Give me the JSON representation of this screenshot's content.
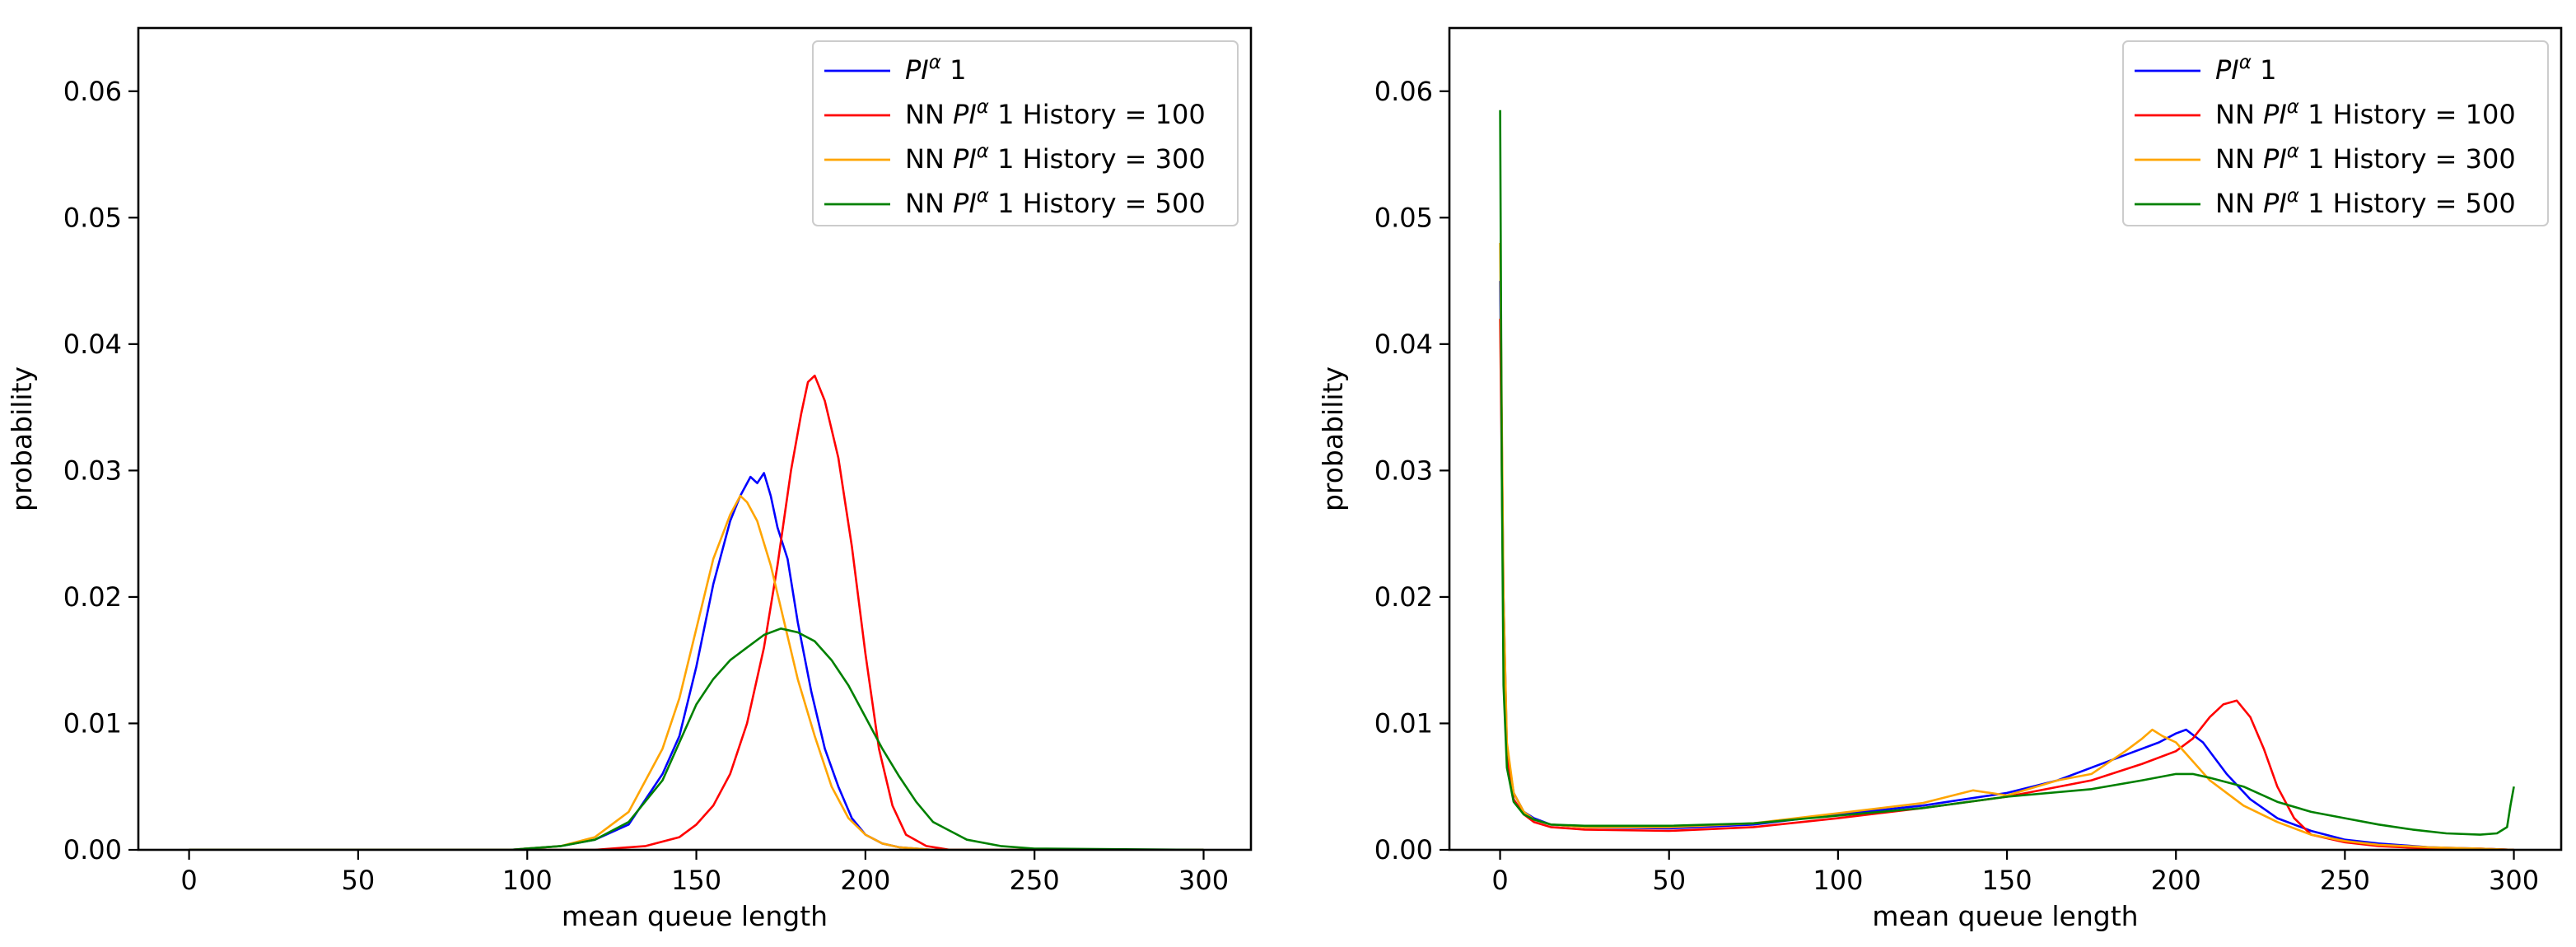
{
  "chart_data": [
    {
      "type": "line",
      "panel": "left",
      "xlabel": "mean queue length",
      "ylabel": "probability",
      "xlim": [
        -15,
        314
      ],
      "ylim": [
        0,
        0.065
      ],
      "xticks": [
        0,
        50,
        100,
        150,
        200,
        250,
        300
      ],
      "xtick_labels": [
        "0",
        "50",
        "100",
        "150",
        "200",
        "250",
        "300"
      ],
      "yticks": [
        0,
        0.01,
        0.02,
        0.03,
        0.04,
        0.05,
        0.06
      ],
      "ytick_labels": [
        "0.00",
        "0.01",
        "0.02",
        "0.03",
        "0.04",
        "0.05",
        "0.06"
      ],
      "legend_position": "top-right",
      "series": [
        {
          "name": "PI^α 1",
          "label_main": "PI",
          "label_sup": "α",
          "label_rest": " 1",
          "color": "#0000ff",
          "x": [
            0,
            95,
            110,
            120,
            130,
            140,
            145,
            150,
            155,
            160,
            163,
            166,
            168,
            170,
            172,
            174,
            177,
            180,
            184,
            188,
            192,
            196,
            200,
            205,
            210,
            220,
            300
          ],
          "y": [
            0,
            0,
            0.0003,
            0.0008,
            0.002,
            0.006,
            0.009,
            0.0145,
            0.021,
            0.026,
            0.028,
            0.0295,
            0.029,
            0.0298,
            0.028,
            0.0255,
            0.023,
            0.018,
            0.0125,
            0.008,
            0.005,
            0.0025,
            0.0012,
            0.0005,
            0.0002,
            0,
            0
          ]
        },
        {
          "name": "NN PI^α 1 History = 100",
          "label_pre": "NN ",
          "label_main": "PI",
          "label_sup": "α",
          "label_rest": " 1 History = 100",
          "color": "#ff0000",
          "x": [
            0,
            120,
            135,
            145,
            150,
            155,
            160,
            165,
            170,
            174,
            178,
            181,
            183,
            185,
            188,
            192,
            196,
            200,
            204,
            208,
            212,
            218,
            225,
            300
          ],
          "y": [
            0,
            0,
            0.0003,
            0.001,
            0.002,
            0.0035,
            0.006,
            0.01,
            0.016,
            0.0225,
            0.03,
            0.0345,
            0.037,
            0.0375,
            0.0355,
            0.031,
            0.024,
            0.0155,
            0.008,
            0.0035,
            0.0012,
            0.0003,
            0,
            0
          ]
        },
        {
          "name": "NN PI^α 1 History = 300",
          "label_pre": "NN ",
          "label_main": "PI",
          "label_sup": "α",
          "label_rest": " 1 History = 300",
          "color": "#ffa500",
          "x": [
            0,
            95,
            110,
            120,
            130,
            140,
            145,
            150,
            155,
            160,
            163,
            165,
            168,
            172,
            176,
            180,
            185,
            190,
            195,
            200,
            205,
            210,
            220,
            300
          ],
          "y": [
            0,
            0,
            0.0003,
            0.001,
            0.003,
            0.008,
            0.012,
            0.0175,
            0.023,
            0.0265,
            0.028,
            0.0275,
            0.026,
            0.0225,
            0.018,
            0.0135,
            0.009,
            0.005,
            0.0025,
            0.0012,
            0.0005,
            0.0002,
            0,
            0
          ]
        },
        {
          "name": "NN PI^α 1 History = 500",
          "label_pre": "NN ",
          "label_main": "PI",
          "label_sup": "α",
          "label_rest": " 1 History = 500",
          "color": "#008000",
          "x": [
            0,
            95,
            110,
            120,
            130,
            140,
            145,
            150,
            155,
            160,
            165,
            170,
            175,
            180,
            185,
            190,
            195,
            200,
            205,
            210,
            215,
            220,
            230,
            240,
            250,
            300
          ],
          "y": [
            0,
            0,
            0.0003,
            0.0008,
            0.0022,
            0.0055,
            0.0085,
            0.0115,
            0.0135,
            0.015,
            0.016,
            0.017,
            0.0175,
            0.0172,
            0.0165,
            0.015,
            0.013,
            0.0105,
            0.008,
            0.0058,
            0.0038,
            0.0022,
            0.0008,
            0.0003,
            0.0001,
            0
          ]
        }
      ]
    },
    {
      "type": "line",
      "panel": "right",
      "xlabel": "mean queue length",
      "ylabel": "probability",
      "xlim": [
        -15,
        314
      ],
      "ylim": [
        0,
        0.065
      ],
      "xticks": [
        0,
        50,
        100,
        150,
        200,
        250,
        300
      ],
      "xtick_labels": [
        "0",
        "50",
        "100",
        "150",
        "200",
        "250",
        "300"
      ],
      "yticks": [
        0,
        0.01,
        0.02,
        0.03,
        0.04,
        0.05,
        0.06
      ],
      "ytick_labels": [
        "0.00",
        "0.01",
        "0.02",
        "0.03",
        "0.04",
        "0.05",
        "0.06"
      ],
      "legend_position": "top-right",
      "series": [
        {
          "name": "PI^α 1",
          "label_main": "PI",
          "label_sup": "α",
          "label_rest": " 1",
          "color": "#0000ff",
          "x": [
            0,
            1,
            2,
            4,
            7,
            10,
            15,
            25,
            50,
            75,
            100,
            125,
            150,
            165,
            175,
            185,
            195,
            200,
            203,
            208,
            215,
            222,
            230,
            240,
            250,
            260,
            275,
            290,
            300
          ],
          "y": [
            0.045,
            0.02,
            0.008,
            0.0045,
            0.003,
            0.0025,
            0.002,
            0.0018,
            0.0017,
            0.002,
            0.0028,
            0.0035,
            0.0045,
            0.0055,
            0.0065,
            0.0075,
            0.0085,
            0.0092,
            0.0095,
            0.0085,
            0.006,
            0.004,
            0.0025,
            0.0015,
            0.0008,
            0.0005,
            0.0002,
            0.0001,
            0
          ]
        },
        {
          "name": "NN PI^α 1 History = 100",
          "label_pre": "NN ",
          "label_main": "PI",
          "label_sup": "α",
          "label_rest": " 1 History = 100",
          "color": "#ff0000",
          "x": [
            0,
            1,
            2,
            4,
            7,
            10,
            15,
            25,
            50,
            75,
            100,
            125,
            150,
            175,
            190,
            200,
            205,
            210,
            214,
            218,
            222,
            226,
            230,
            235,
            240,
            250,
            260,
            275,
            290,
            300
          ],
          "y": [
            0.042,
            0.018,
            0.0075,
            0.004,
            0.0028,
            0.0022,
            0.0018,
            0.0016,
            0.0015,
            0.0018,
            0.0025,
            0.0033,
            0.0042,
            0.0055,
            0.0068,
            0.0078,
            0.0088,
            0.0105,
            0.0115,
            0.0118,
            0.0105,
            0.008,
            0.005,
            0.0025,
            0.0012,
            0.0006,
            0.0003,
            0.0001,
            0.0001,
            0
          ]
        },
        {
          "name": "NN PI^α 1 History = 300",
          "label_pre": "NN ",
          "label_main": "PI",
          "label_sup": "α",
          "label_rest": " 1 History = 300",
          "color": "#ffa500",
          "x": [
            0,
            1,
            2,
            4,
            7,
            10,
            15,
            25,
            50,
            75,
            100,
            125,
            140,
            150,
            165,
            175,
            185,
            190,
            193,
            196,
            200,
            205,
            210,
            215,
            220,
            230,
            240,
            250,
            260,
            275,
            290,
            300
          ],
          "y": [
            0.048,
            0.02,
            0.0085,
            0.0045,
            0.003,
            0.0024,
            0.002,
            0.0018,
            0.0018,
            0.0021,
            0.0029,
            0.0037,
            0.0047,
            0.0043,
            0.0055,
            0.006,
            0.0078,
            0.0088,
            0.0095,
            0.009,
            0.0085,
            0.007,
            0.0055,
            0.0045,
            0.0035,
            0.0022,
            0.0012,
            0.0007,
            0.0004,
            0.0002,
            0.0001,
            0
          ]
        },
        {
          "name": "NN PI^α 1 History = 500",
          "label_pre": "NN ",
          "label_main": "PI",
          "label_sup": "α",
          "label_rest": " 1 History = 500",
          "color": "#008000",
          "x": [
            0,
            0.5,
            1,
            2,
            4,
            7,
            10,
            15,
            25,
            50,
            75,
            100,
            125,
            150,
            175,
            190,
            200,
            205,
            210,
            220,
            230,
            240,
            250,
            260,
            270,
            280,
            290,
            295,
            298,
            299,
            300
          ],
          "y": [
            0.0585,
            0.03,
            0.013,
            0.0065,
            0.0038,
            0.0028,
            0.0024,
            0.002,
            0.0019,
            0.0019,
            0.0021,
            0.0027,
            0.0033,
            0.0042,
            0.0048,
            0.0055,
            0.006,
            0.006,
            0.0057,
            0.005,
            0.0038,
            0.003,
            0.0025,
            0.002,
            0.0016,
            0.0013,
            0.0012,
            0.0013,
            0.0018,
            0.0035,
            0.005
          ]
        }
      ]
    }
  ]
}
